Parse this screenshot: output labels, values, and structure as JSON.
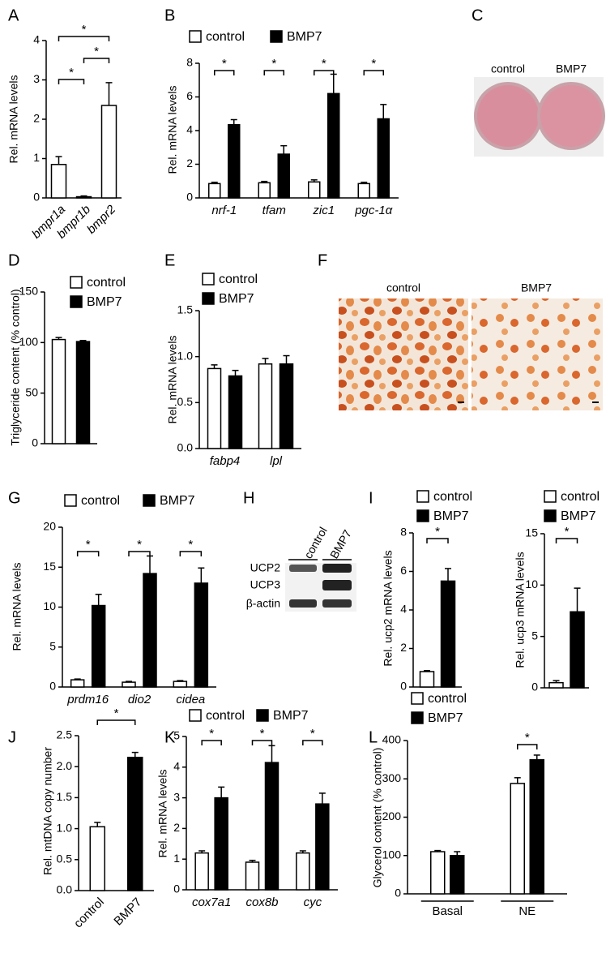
{
  "panel_labels": [
    "A",
    "B",
    "C",
    "D",
    "E",
    "F",
    "G",
    "H",
    "I",
    "J",
    "K",
    "L"
  ],
  "panel_c": {
    "labels": [
      "control",
      "BMP7"
    ]
  },
  "panel_f": {
    "labels": [
      "control",
      "BMP7"
    ]
  },
  "panel_h": {
    "lanes": [
      "control",
      "BMP7"
    ],
    "bands": [
      "UCP2",
      "UCP3",
      "β-actin"
    ]
  },
  "chart_data": [
    {
      "type": "bar",
      "y_label": "Rel. mRNA levels",
      "categories": [
        "bmpr1a",
        "bmpr1b",
        "bmpr2"
      ],
      "series": [
        {
          "color": "#ffffff",
          "values": [
            0.85,
            0.03,
            2.35
          ],
          "errors": [
            0.2,
            0.02,
            0.58
          ]
        }
      ],
      "ylim": [
        0,
        4
      ],
      "yticks": [
        0,
        1,
        2,
        3,
        4
      ],
      "significance": [
        "*",
        "*",
        "*"
      ]
    },
    {
      "type": "bar",
      "y_label": "Rel. mRNA levels",
      "categories": [
        "nrf-1",
        "tfam",
        "zic1",
        "pgc-1α"
      ],
      "series": [
        {
          "name": "control",
          "color": "#ffffff",
          "values": [
            0.85,
            0.9,
            0.95,
            0.85
          ],
          "errors": [
            0.08,
            0.08,
            0.12,
            0.08
          ]
        },
        {
          "name": "BMP7",
          "color": "#000000",
          "values": [
            4.35,
            2.6,
            6.2,
            4.7
          ],
          "errors": [
            0.3,
            0.5,
            1.15,
            0.85
          ]
        }
      ],
      "ylim": [
        0,
        8
      ],
      "yticks": [
        0,
        2,
        4,
        6,
        8
      ],
      "significance": [
        "*",
        "*",
        "*",
        "*"
      ]
    },
    {
      "type": "bar",
      "y_label": "Triglyceride content (% control)",
      "categories": [
        null
      ],
      "series": [
        {
          "name": "control",
          "color": "#ffffff",
          "values": [
            103
          ],
          "errors": [
            2
          ]
        },
        {
          "name": "BMP7",
          "color": "#000000",
          "values": [
            101
          ],
          "errors": [
            1
          ]
        }
      ],
      "ylim": [
        0,
        150
      ],
      "yticks": [
        0,
        50,
        100,
        150
      ],
      "significance": []
    },
    {
      "type": "bar",
      "y_label": "Rel. mRNA levels",
      "categories": [
        "fabp4",
        "lpl"
      ],
      "series": [
        {
          "name": "control",
          "color": "#ffffff",
          "values": [
            0.87,
            0.92
          ],
          "errors": [
            0.04,
            0.06
          ]
        },
        {
          "name": "BMP7",
          "color": "#000000",
          "values": [
            0.79,
            0.92
          ],
          "errors": [
            0.06,
            0.09
          ]
        }
      ],
      "ylim": [
        0,
        1.5
      ],
      "yticks": [
        {
          "value": 0,
          "label": "0.0"
        },
        0.5,
        {
          "value": 1,
          "label": "1.0"
        },
        1.5
      ],
      "significance": []
    },
    {
      "type": "bar",
      "y_label": "Rel. mRNA levels",
      "categories": [
        "prdm16",
        "dio2",
        "cidea"
      ],
      "series": [
        {
          "name": "control",
          "color": "#ffffff",
          "values": [
            0.9,
            0.6,
            0.7
          ],
          "errors": [
            0.1,
            0.1,
            0.1
          ]
        },
        {
          "name": "BMP7",
          "color": "#000000",
          "values": [
            10.2,
            14.2,
            13.0
          ],
          "errors": [
            1.4,
            2.2,
            1.9
          ]
        }
      ],
      "ylim": [
        0,
        20
      ],
      "yticks": [
        0,
        5,
        10,
        15,
        20
      ],
      "significance": [
        "*",
        "*",
        "*"
      ]
    },
    {
      "type": "bar",
      "y_label": "Rel. ucp2 mRNA levels",
      "categories": [
        null
      ],
      "series": [
        {
          "name": "control",
          "color": "#ffffff",
          "values": [
            0.8
          ],
          "errors": [
            0.05
          ]
        },
        {
          "name": "BMP7",
          "color": "#000000",
          "values": [
            5.5
          ],
          "errors": [
            0.65
          ]
        }
      ],
      "ylim": [
        0,
        8
      ],
      "yticks": [
        0,
        2,
        4,
        6,
        8
      ],
      "significance": [
        "*"
      ]
    },
    {
      "type": "bar",
      "y_label": "Rel. ucp3 mRNA levels",
      "categories": [
        null
      ],
      "series": [
        {
          "name": "control",
          "color": "#ffffff",
          "values": [
            0.5
          ],
          "errors": [
            0.2
          ]
        },
        {
          "name": "BMP7",
          "color": "#000000",
          "values": [
            7.4
          ],
          "errors": [
            2.3
          ]
        }
      ],
      "ylim": [
        0,
        15
      ],
      "yticks": [
        0,
        5,
        10,
        15
      ],
      "significance": [
        "*"
      ]
    },
    {
      "type": "bar",
      "y_label": "Rel. mtDNA copy number",
      "categories": [
        "control",
        "BMP7"
      ],
      "series": [
        {
          "colors": [
            "#ffffff",
            "#000000"
          ],
          "values": [
            1.03,
            2.15
          ],
          "errors": [
            0.07,
            0.08
          ]
        }
      ],
      "ylim": [
        0,
        2.5
      ],
      "yticks": [
        {
          "value": 0,
          "label": "0.0"
        },
        0.5,
        {
          "value": 1,
          "label": "1.0"
        },
        1.5,
        {
          "value": 2,
          "label": "2.0"
        },
        2.5
      ],
      "significance": [
        "*"
      ]
    },
    {
      "type": "bar",
      "y_label": "Rel. mRNA levels",
      "categories": [
        "cox7a1",
        "cox8b",
        "cyc"
      ],
      "series": [
        {
          "name": "control",
          "color": "#ffffff",
          "values": [
            1.2,
            0.9,
            1.2
          ],
          "errors": [
            0.07,
            0.06,
            0.07
          ]
        },
        {
          "name": "BMP7",
          "color": "#000000",
          "values": [
            3.0,
            4.15,
            2.8
          ],
          "errors": [
            0.35,
            0.55,
            0.35
          ]
        }
      ],
      "ylim": [
        0,
        5
      ],
      "yticks": [
        0,
        1,
        2,
        3,
        4,
        5
      ],
      "significance": [
        "*",
        "*",
        "*"
      ]
    },
    {
      "type": "bar",
      "y_label": "Glycerol content (% control)",
      "categories": [
        "Basal",
        "NE"
      ],
      "series": [
        {
          "name": "control",
          "color": "#ffffff",
          "values": [
            110,
            288
          ],
          "errors": [
            3,
            15
          ]
        },
        {
          "name": "BMP7",
          "color": "#000000",
          "values": [
            100,
            350
          ],
          "errors": [
            10,
            12
          ]
        }
      ],
      "ylim": [
        0,
        400
      ],
      "yticks": [
        0,
        100,
        200,
        300,
        400
      ],
      "significance": [
        "*"
      ]
    }
  ]
}
